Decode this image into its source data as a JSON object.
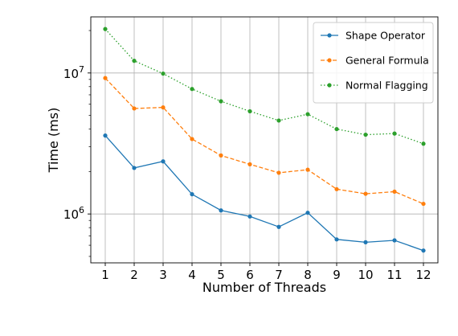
{
  "chart_data": {
    "type": "line",
    "title": "",
    "xlabel": "Number of Threads",
    "ylabel": "Time (ms)",
    "yscale": "log",
    "xlim": [
      0.5,
      12.5
    ],
    "ylim": [
      450000,
      25000000
    ],
    "grid": true,
    "legend_position": "top-right",
    "x": [
      1,
      2,
      3,
      4,
      5,
      6,
      7,
      8,
      9,
      10,
      11,
      12
    ],
    "x_tick_labels": [
      "1",
      "2",
      "3",
      "4",
      "5",
      "6",
      "7",
      "8",
      "9",
      "10",
      "11",
      "12"
    ],
    "y_major_ticks": [
      {
        "value": 1000000,
        "base": "10",
        "exponent": "6"
      },
      {
        "value": 10000000,
        "base": "10",
        "exponent": "7"
      }
    ],
    "series": [
      {
        "name": "Shape Operator",
        "color": "#1f77b4",
        "linestyle": "solid",
        "values": [
          3600000,
          2120000,
          2360000,
          1380000,
          1060000,
          960000,
          810000,
          1020000,
          660000,
          630000,
          650000,
          550000
        ]
      },
      {
        "name": "General Formula",
        "color": "#ff7f0e",
        "linestyle": "dashed",
        "values": [
          9200000,
          5600000,
          5700000,
          3400000,
          2600000,
          2250000,
          1960000,
          2060000,
          1500000,
          1390000,
          1440000,
          1180000
        ]
      },
      {
        "name": "Normal Flagging",
        "color": "#2ca02c",
        "linestyle": "dotted",
        "values": [
          20500000,
          12200000,
          9900000,
          7700000,
          6300000,
          5350000,
          4600000,
          5100000,
          4000000,
          3650000,
          3720000,
          3150000
        ]
      }
    ]
  }
}
